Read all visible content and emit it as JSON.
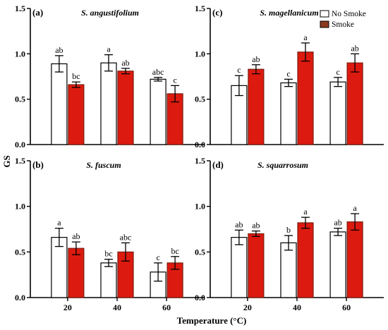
{
  "figure": {
    "ylabel": "GS",
    "xlabel": "Temperature (°C)",
    "legend": [
      {
        "name": "No Smoke",
        "color": "#ffffff"
      },
      {
        "name": "Smoke",
        "color": "#dd1a0f"
      }
    ]
  },
  "chart_data": [
    {
      "type": "bar",
      "letter": "(a)",
      "title": "S. angustifolium",
      "categories": [
        "20",
        "40",
        "60"
      ],
      "ylim": [
        0,
        1.5
      ],
      "yticks": [
        "0.0",
        "0.5",
        "1.0",
        "1.5"
      ],
      "series": [
        {
          "name": "No Smoke",
          "values": [
            0.89,
            0.9,
            0.72
          ],
          "errors": [
            0.09,
            0.09,
            0.02
          ],
          "labels": [
            "ab",
            "a",
            "abc"
          ]
        },
        {
          "name": "Smoke",
          "values": [
            0.66,
            0.81,
            0.56
          ],
          "errors": [
            0.03,
            0.03,
            0.09
          ],
          "labels": [
            "bc",
            "ab",
            "c"
          ]
        }
      ]
    },
    {
      "type": "bar",
      "letter": "(c)",
      "title": "S. magellanicum",
      "categories": [
        "20",
        "40",
        "60"
      ],
      "ylim": [
        0,
        1.5
      ],
      "yticks": [
        "0.0",
        "0.5",
        "1.0",
        "1.5"
      ],
      "series": [
        {
          "name": "No Smoke",
          "values": [
            0.65,
            0.68,
            0.69
          ],
          "errors": [
            0.11,
            0.04,
            0.05
          ],
          "labels": [
            "c",
            "c",
            "c"
          ]
        },
        {
          "name": "Smoke",
          "values": [
            0.83,
            1.02,
            0.9
          ],
          "errors": [
            0.05,
            0.1,
            0.1
          ],
          "labels": [
            "ab",
            "a",
            "ab"
          ]
        }
      ]
    },
    {
      "type": "bar",
      "letter": "(b)",
      "title": "S. fuscum",
      "categories": [
        "20",
        "40",
        "60"
      ],
      "ylim": [
        0,
        1.5
      ],
      "yticks": [
        "0.0",
        "0.5",
        "1.0",
        "1.5"
      ],
      "series": [
        {
          "name": "No Smoke",
          "values": [
            0.66,
            0.38,
            0.28
          ],
          "errors": [
            0.1,
            0.04,
            0.1
          ],
          "labels": [
            "a",
            "bc",
            "c"
          ]
        },
        {
          "name": "Smoke",
          "values": [
            0.54,
            0.5,
            0.38
          ],
          "errors": [
            0.07,
            0.1,
            0.07
          ],
          "labels": [
            "ab",
            "abc",
            "bc"
          ]
        }
      ]
    },
    {
      "type": "bar",
      "letter": "(d)",
      "title": "S. squarrosum",
      "categories": [
        "20",
        "40",
        "60"
      ],
      "ylim": [
        0,
        1.5
      ],
      "yticks": [
        "0.0",
        "0.5",
        "1.0",
        "1.5"
      ],
      "series": [
        {
          "name": "No Smoke",
          "values": [
            0.66,
            0.6,
            0.72
          ],
          "errors": [
            0.08,
            0.08,
            0.04
          ],
          "labels": [
            "ab",
            "b",
            "ab"
          ]
        },
        {
          "name": "Smoke",
          "values": [
            0.7,
            0.82,
            0.83
          ],
          "errors": [
            0.03,
            0.06,
            0.09
          ],
          "labels": [
            "ab",
            "a",
            "a"
          ]
        }
      ]
    }
  ]
}
